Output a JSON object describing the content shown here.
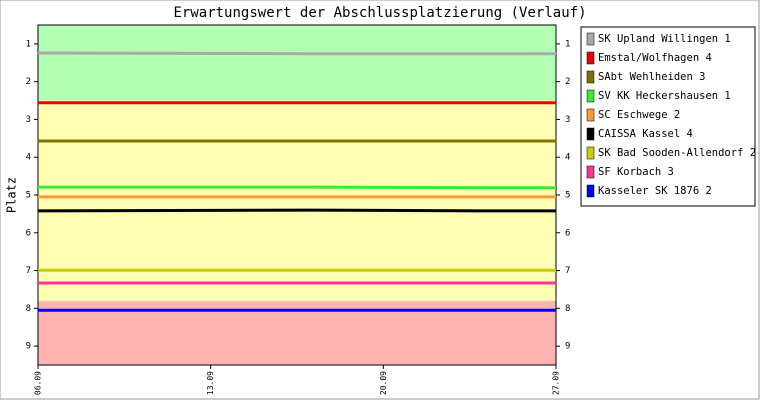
{
  "chart_data": {
    "type": "line",
    "title": "Erwartungswert der Abschlussplatzierung (Verlauf)",
    "y_label": "Platz",
    "x": [
      6,
      17,
      24,
      27
    ],
    "xlim": [
      6,
      27
    ],
    "xticks": [
      {
        "value": 6,
        "label": "06.09"
      },
      {
        "value": 13,
        "label": "13.09"
      },
      {
        "value": 20,
        "label": "20.09"
      },
      {
        "value": 27,
        "label": "27.09"
      }
    ],
    "ylim": [
      0.5,
      9.5
    ],
    "y_inverted": true,
    "yticks": [
      1,
      2,
      3,
      4,
      5,
      6,
      7,
      8,
      9
    ],
    "bands": [
      {
        "from": 0.5,
        "to": 2.5,
        "color": "#b3ffb3"
      },
      {
        "from": 2.5,
        "to": 7.8,
        "color": "#ffffb3"
      },
      {
        "from": 7.8,
        "to": 9.5,
        "color": "#ffb3b3"
      }
    ],
    "legend": "right",
    "series": [
      {
        "name": "SK Upland Willingen 1",
        "color": "#aaaaaa",
        "values": [
          1.24,
          1.26,
          1.26,
          1.26
        ]
      },
      {
        "name": "Emstal/Wolfhagen 4",
        "color": "#ee0000",
        "values": [
          2.56,
          2.56,
          2.56,
          2.56
        ]
      },
      {
        "name": "SAbt Wehlheiden 3",
        "color": "#807000",
        "values": [
          3.57,
          3.57,
          3.57,
          3.57
        ]
      },
      {
        "name": "SV KK Heckershausen 1",
        "color": "#33ee33",
        "values": [
          4.79,
          4.79,
          4.81,
          4.81
        ]
      },
      {
        "name": "SC Eschwege 2",
        "color": "#ff9933",
        "values": [
          5.05,
          5.05,
          5.05,
          5.05
        ]
      },
      {
        "name": "CAISSA Kassel 4",
        "color": "#000000",
        "values": [
          5.42,
          5.4,
          5.42,
          5.42
        ]
      },
      {
        "name": "SK Bad Sooden-Allendorf 2",
        "color": "#cccc00",
        "values": [
          6.99,
          6.99,
          6.99,
          6.99
        ]
      },
      {
        "name": "SF Korbach 3",
        "color": "#ff3399",
        "values": [
          7.33,
          7.33,
          7.33,
          7.33
        ]
      },
      {
        "name": "Kasseler SK 1876 2",
        "color": "#0000ff",
        "values": [
          8.05,
          8.05,
          8.05,
          8.05
        ]
      }
    ]
  }
}
